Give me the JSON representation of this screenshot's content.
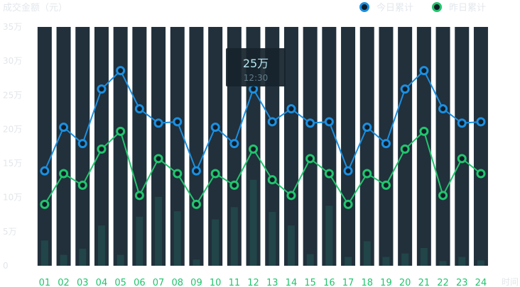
{
  "chart_data": {
    "type": "bar",
    "title": "成交金额（元）",
    "xlabel": "时间",
    "categories": [
      "01",
      "02",
      "03",
      "04",
      "05",
      "06",
      "07",
      "08",
      "09",
      "10",
      "11",
      "12",
      "13",
      "14",
      "15",
      "16",
      "17",
      "18",
      "19",
      "20",
      "21",
      "22",
      "23",
      "24"
    ],
    "y_ticks": [
      "0",
      "5万",
      "10万",
      "15万",
      "20万",
      "25万",
      "30万",
      "35万"
    ],
    "ylim": [
      0,
      35
    ],
    "bar_color": "#21303b",
    "volume_color": "#214549",
    "volume_values": [
      3.7,
      1.6,
      2.5,
      5.9,
      1.6,
      7.2,
      10.1,
      8.0,
      0.9,
      6.8,
      8.6,
      12.6,
      7.9,
      5.9,
      1.7,
      8.8,
      1.3,
      3.6,
      1.3,
      1.8,
      2.6,
      0.7,
      1.3,
      0.8
    ],
    "series": [
      {
        "name": "今日累计",
        "color": "#1c8fe0",
        "values": [
          13.9,
          20.3,
          17.9,
          25.9,
          28.6,
          23.0,
          20.9,
          21.1,
          13.9,
          20.3,
          17.9,
          25.9,
          21.1,
          23.0,
          20.9,
          21.1,
          13.9,
          20.3,
          17.9,
          25.9,
          28.6,
          23.0,
          20.9,
          21.1
        ]
      },
      {
        "name": "昨日累计",
        "color": "#22c46e",
        "values": [
          9.0,
          13.5,
          11.8,
          17.1,
          19.7,
          10.3,
          15.7,
          13.5,
          9.0,
          13.5,
          11.8,
          17.1,
          12.6,
          10.3,
          15.7,
          13.5,
          9.0,
          13.5,
          11.8,
          17.1,
          19.7,
          10.3,
          15.7,
          13.5
        ]
      }
    ],
    "tooltip": {
      "value": "25万",
      "time": "12:30"
    },
    "legend_position": "top-right",
    "grid": false
  }
}
